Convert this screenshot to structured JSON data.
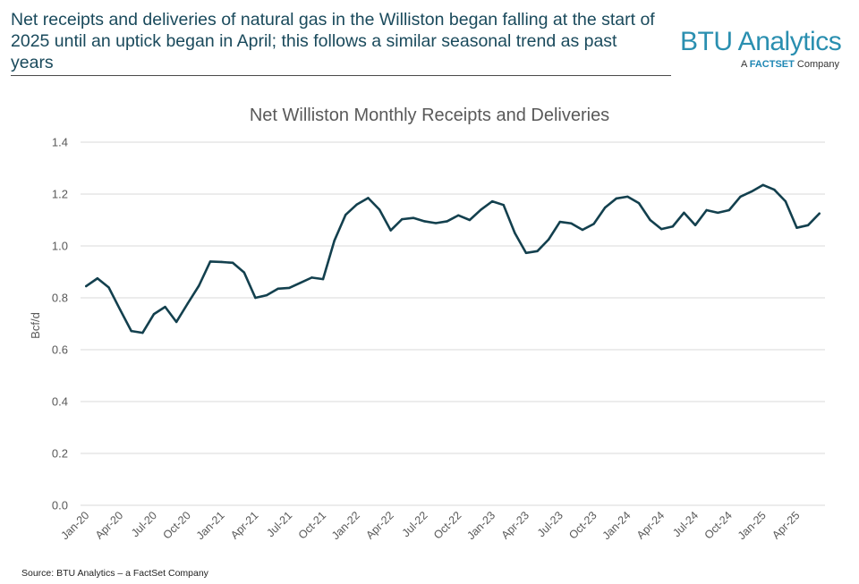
{
  "headline": "Net receipts and deliveries of natural gas in the Williston began falling at the start of 2025 until an uptick began in April; this follows a similar seasonal trend as past years",
  "logo": {
    "brand": "BTU Analytics",
    "tagline_prefix": "A",
    "tagline_brand": "FACTSET",
    "tagline_suffix": "Company"
  },
  "source": "Source: BTU Analytics – a FactSet Company",
  "colors": {
    "line": "#13404e",
    "grid": "#d9d9d9",
    "headline": "#1a4a5c",
    "brand": "#2a8fb0"
  },
  "chart_data": {
    "type": "line",
    "title": "Net Williston Monthly Receipts and Deliveries",
    "xlabel": "",
    "ylabel": "Bcf/d",
    "ylim": [
      0,
      1.4
    ],
    "yticks": [
      "0.0",
      "0.2",
      "0.4",
      "0.6",
      "0.8",
      "1.0",
      "1.2",
      "1.4"
    ],
    "grid": true,
    "x_tick_labels": [
      "Jan-20",
      "Apr-20",
      "Jul-20",
      "Oct-20",
      "Jan-21",
      "Apr-21",
      "Jul-21",
      "Oct-21",
      "Jan-22",
      "Apr-22",
      "Jul-22",
      "Oct-22",
      "Jan-23",
      "Apr-23",
      "Jul-23",
      "Oct-23",
      "Jan-24",
      "Apr-24",
      "Jul-24",
      "Oct-24",
      "Jan-25",
      "Apr-25"
    ],
    "x_start": "Jan-20",
    "series": [
      {
        "name": "Net Williston",
        "values": [
          0.845,
          0.875,
          0.84,
          0.755,
          0.672,
          0.665,
          0.737,
          0.765,
          0.707,
          0.778,
          0.847,
          0.94,
          0.938,
          0.935,
          0.898,
          0.8,
          0.81,
          0.835,
          0.838,
          0.858,
          0.878,
          0.872,
          1.02,
          1.12,
          1.16,
          1.185,
          1.14,
          1.06,
          1.103,
          1.108,
          1.095,
          1.088,
          1.095,
          1.118,
          1.1,
          1.14,
          1.172,
          1.158,
          1.05,
          0.973,
          0.98,
          1.025,
          1.093,
          1.087,
          1.062,
          1.085,
          1.148,
          1.183,
          1.19,
          1.165,
          1.1,
          1.065,
          1.075,
          1.128,
          1.08,
          1.138,
          1.128,
          1.138,
          1.19,
          1.21,
          1.235,
          1.217,
          1.172,
          1.07,
          1.08,
          1.125
        ]
      }
    ]
  }
}
